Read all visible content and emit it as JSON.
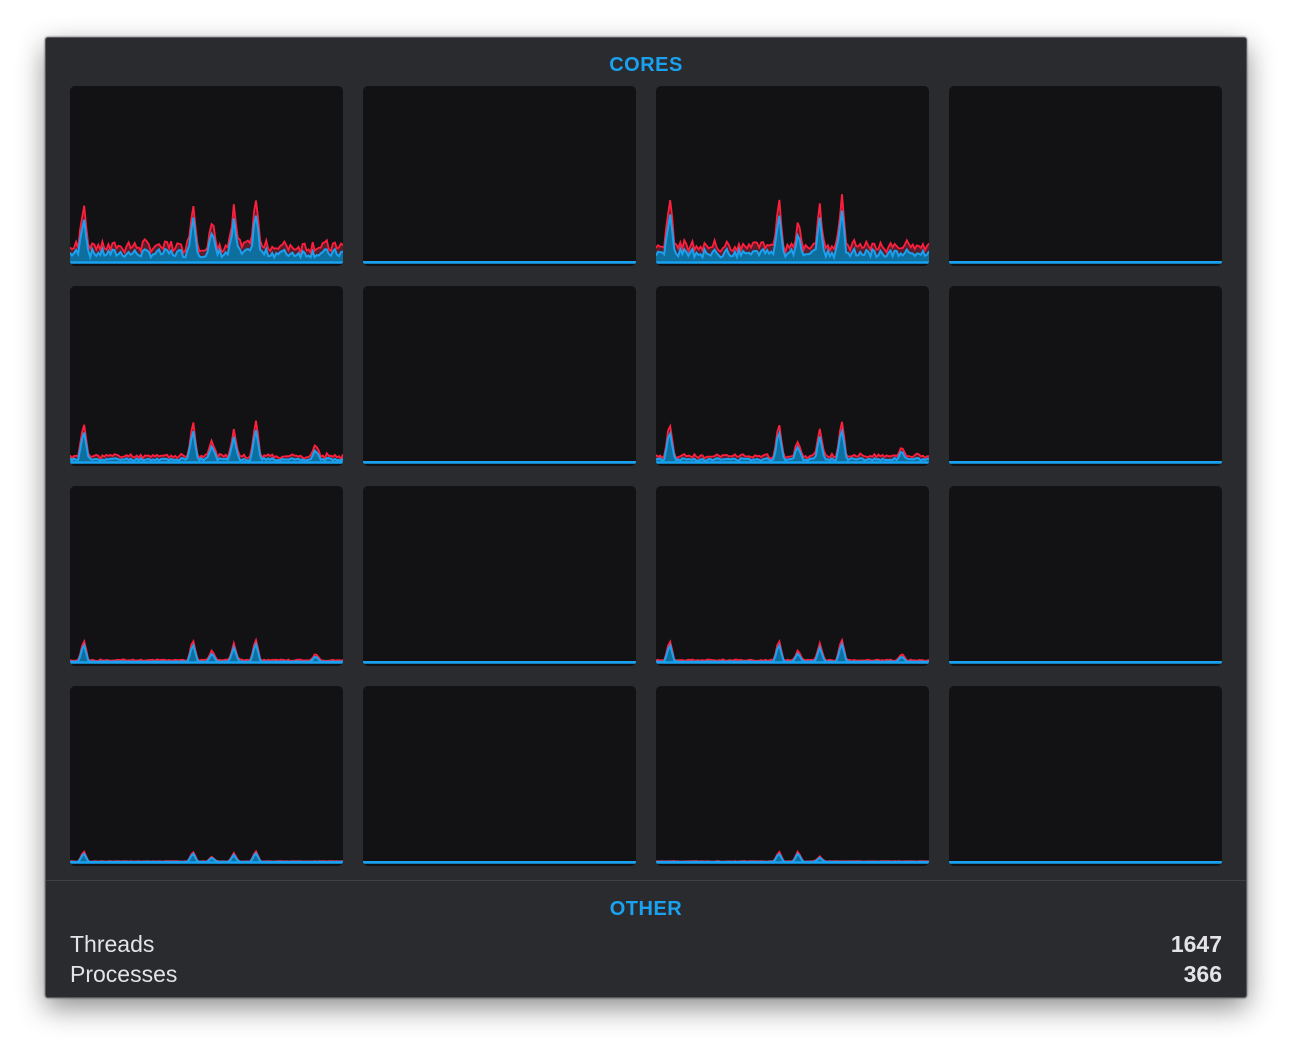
{
  "cores_section": {
    "title": "CORES",
    "core_count": 16,
    "colors": {
      "user_load": "#1aa2f0",
      "system_load": "#ff1f3d",
      "graph_background": "#121214"
    },
    "cores": [
      {
        "activity": "high",
        "spikes": [
          0.05,
          0.45,
          0.52,
          0.6,
          0.68
        ]
      },
      {
        "activity": "idle",
        "spikes": []
      },
      {
        "activity": "high",
        "spikes": [
          0.05,
          0.45,
          0.52,
          0.6,
          0.68
        ]
      },
      {
        "activity": "idle",
        "spikes": []
      },
      {
        "activity": "medium",
        "spikes": [
          0.05,
          0.45,
          0.52,
          0.6,
          0.68,
          0.9
        ]
      },
      {
        "activity": "idle",
        "spikes": []
      },
      {
        "activity": "medium",
        "spikes": [
          0.05,
          0.45,
          0.52,
          0.6,
          0.68,
          0.9
        ]
      },
      {
        "activity": "idle",
        "spikes": []
      },
      {
        "activity": "low",
        "spikes": [
          0.05,
          0.45,
          0.52,
          0.6,
          0.68,
          0.9
        ]
      },
      {
        "activity": "idle",
        "spikes": []
      },
      {
        "activity": "low",
        "spikes": [
          0.05,
          0.45,
          0.52,
          0.6,
          0.68,
          0.9
        ]
      },
      {
        "activity": "idle",
        "spikes": []
      },
      {
        "activity": "minimal",
        "spikes": [
          0.05,
          0.45,
          0.52,
          0.6,
          0.68
        ]
      },
      {
        "activity": "idle",
        "spikes": []
      },
      {
        "activity": "minimal",
        "spikes": [
          0.45,
          0.52,
          0.6
        ]
      },
      {
        "activity": "idle",
        "spikes": []
      }
    ]
  },
  "other_section": {
    "title": "OTHER",
    "stats": {
      "threads": {
        "label": "Threads",
        "value": "1647"
      },
      "processes": {
        "label": "Processes",
        "value": "366"
      }
    }
  }
}
